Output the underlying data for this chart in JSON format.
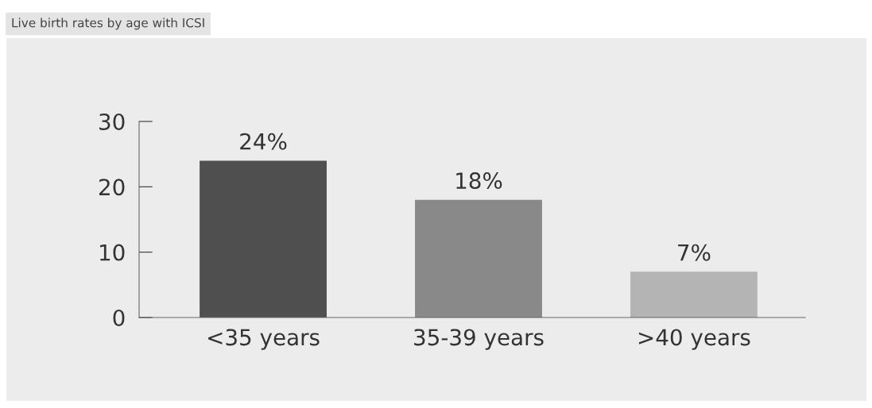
{
  "chart_data": {
    "type": "bar",
    "title": "Live birth rates by age with ICSI",
    "categories": [
      "<35 years",
      "35-39 years",
      ">40 years"
    ],
    "values": [
      24,
      18,
      7
    ],
    "value_labels": [
      "24%",
      "18%",
      "7%"
    ],
    "colors": [
      "#4f4f4f",
      "#898989",
      "#b4b4b4"
    ],
    "ylim": [
      0,
      30
    ],
    "yticks": [
      0,
      10,
      20,
      30
    ],
    "grid": false,
    "legend": false
  }
}
